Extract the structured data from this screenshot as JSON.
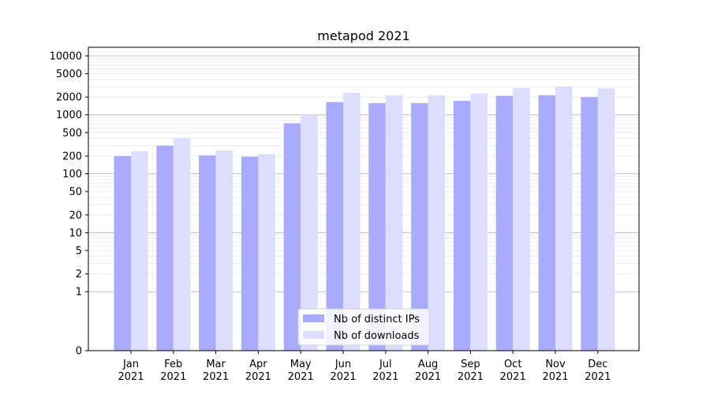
{
  "chart_data": {
    "type": "bar",
    "title": "metapod 2021",
    "xlabel": "",
    "ylabel": "",
    "y_scale": "symlog",
    "y_ticks": [
      0,
      1,
      2,
      5,
      10,
      20,
      50,
      100,
      200,
      500,
      1000,
      2000,
      5000,
      10000
    ],
    "y_tick_labels": [
      "0",
      "1",
      "2",
      "5",
      "10",
      "20",
      "50",
      "100",
      "200",
      "500",
      "1000",
      "2000",
      "5000",
      "10000"
    ],
    "ylim": [
      0,
      14000
    ],
    "grid": true,
    "legend_position": "lower center",
    "categories": [
      "Jan\n2021",
      "Feb\n2021",
      "Mar\n2021",
      "Apr\n2021",
      "May\n2021",
      "Jun\n2021",
      "Jul\n2021",
      "Aug\n2021",
      "Sep\n2021",
      "Oct\n2021",
      "Nov\n2021",
      "Dec\n2021"
    ],
    "category_lines": [
      [
        "Jan",
        "2021"
      ],
      [
        "Feb",
        "2021"
      ],
      [
        "Mar",
        "2021"
      ],
      [
        "Apr",
        "2021"
      ],
      [
        "May",
        "2021"
      ],
      [
        "Jun",
        "2021"
      ],
      [
        "Jul",
        "2021"
      ],
      [
        "Aug",
        "2021"
      ],
      [
        "Sep",
        "2021"
      ],
      [
        "Oct",
        "2021"
      ],
      [
        "Nov",
        "2021"
      ],
      [
        "Dec",
        "2021"
      ]
    ],
    "series": [
      {
        "name": "Nb of distinct IPs",
        "color": "#aaaaff",
        "values": [
          200,
          300,
          205,
          195,
          720,
          1650,
          1580,
          1580,
          1730,
          2100,
          2150,
          2000
        ]
      },
      {
        "name": "Nb of downloads",
        "color": "#ddddff",
        "values": [
          240,
          400,
          250,
          215,
          1000,
          2350,
          2150,
          2150,
          2300,
          2850,
          3050,
          2800
        ]
      }
    ]
  }
}
